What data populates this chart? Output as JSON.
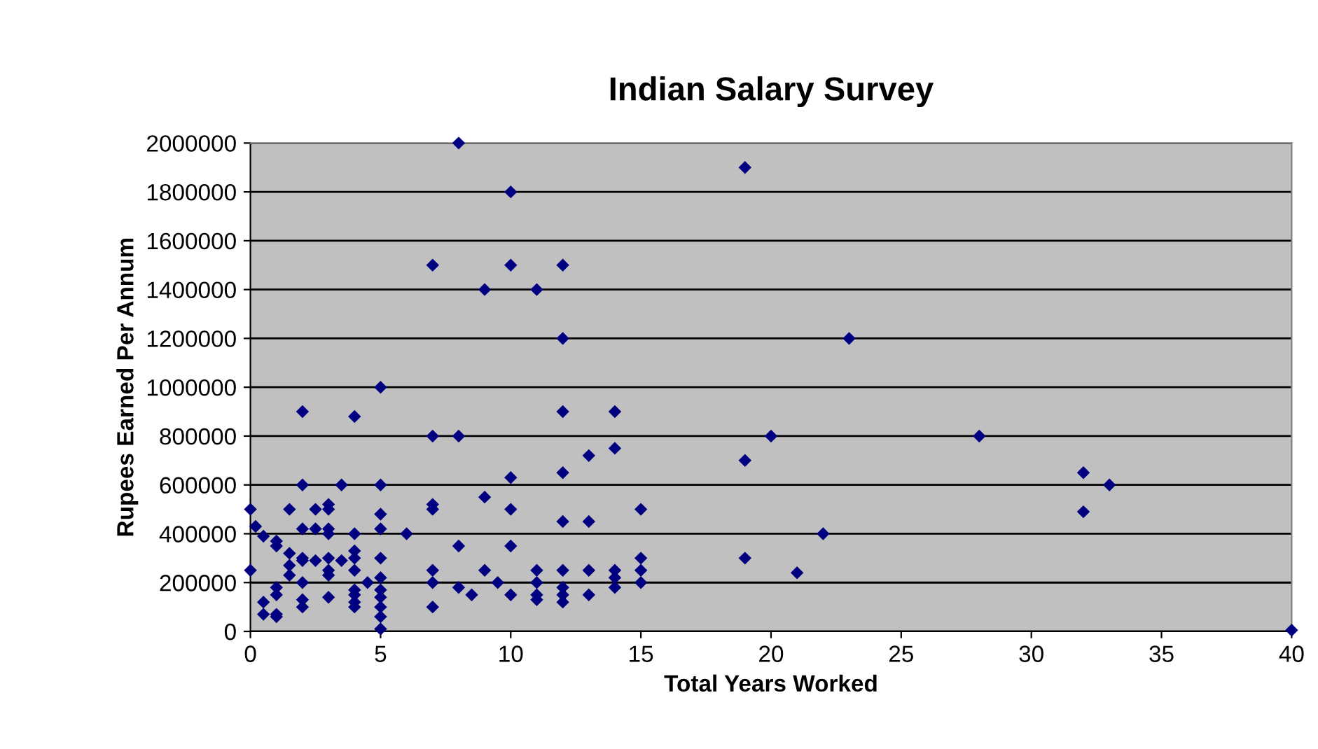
{
  "chart_data": {
    "type": "scatter",
    "title": "Indian Salary Survey",
    "xlabel": "Total Years Worked",
    "ylabel": "Rupees Earned Per Annum",
    "series": [
      {
        "color": "#000080",
        "x": [
          0,
          0.2,
          0,
          0.5,
          0.5,
          0.5,
          1,
          1,
          1,
          1,
          1,
          1,
          1.5,
          1.5,
          1.5,
          1.5,
          2,
          2,
          2,
          2,
          2,
          2,
          2,
          2,
          2.5,
          2.5,
          2.5,
          3,
          3,
          3,
          3,
          3,
          3,
          3,
          3,
          3.5,
          3.5,
          4,
          4,
          4,
          4,
          4,
          4,
          4,
          4,
          4,
          4.5,
          5,
          5,
          5,
          5,
          5,
          5,
          5,
          5,
          5,
          5,
          5,
          6,
          7,
          7,
          7,
          7,
          7,
          7,
          7,
          8,
          8,
          8,
          8,
          8.5,
          9,
          9,
          9,
          9.5,
          10,
          10,
          10,
          10,
          10,
          10,
          11,
          11,
          11,
          11,
          11,
          12,
          12,
          12,
          12,
          12,
          12,
          12,
          12,
          12,
          13,
          13,
          13,
          13,
          14,
          14,
          14,
          14,
          14,
          15,
          15,
          15,
          15,
          19,
          19,
          19,
          20,
          21,
          22,
          23,
          28,
          32,
          32,
          33,
          40
        ],
        "values": [
          500000,
          430000,
          250000,
          390000,
          120000,
          70000,
          370000,
          350000,
          180000,
          150000,
          70000,
          60000,
          500000,
          320000,
          270000,
          230000,
          900000,
          600000,
          420000,
          300000,
          290000,
          200000,
          130000,
          100000,
          500000,
          420000,
          290000,
          520000,
          500000,
          420000,
          400000,
          300000,
          250000,
          230000,
          140000,
          600000,
          290000,
          880000,
          400000,
          330000,
          300000,
          250000,
          170000,
          150000,
          120000,
          100000,
          200000,
          1000000,
          600000,
          480000,
          420000,
          300000,
          220000,
          170000,
          140000,
          100000,
          60000,
          10000,
          400000,
          1500000,
          800000,
          520000,
          500000,
          250000,
          200000,
          100000,
          2000000,
          800000,
          350000,
          180000,
          150000,
          1400000,
          550000,
          250000,
          200000,
          1800000,
          1500000,
          630000,
          500000,
          350000,
          150000,
          1400000,
          250000,
          200000,
          150000,
          130000,
          1500000,
          1200000,
          900000,
          650000,
          450000,
          250000,
          180000,
          150000,
          120000,
          720000,
          450000,
          250000,
          150000,
          900000,
          750000,
          250000,
          220000,
          180000,
          500000,
          300000,
          250000,
          200000,
          1900000,
          700000,
          300000,
          800000,
          240000,
          400000,
          1200000,
          800000,
          650000,
          490000,
          600000,
          5000
        ]
      }
    ],
    "marker": "diamond",
    "grid": "y",
    "legend": false,
    "xlim": [
      0,
      40
    ],
    "xticks": [
      0,
      5,
      10,
      15,
      20,
      25,
      30,
      35,
      40
    ],
    "ylim": [
      0,
      2000000
    ],
    "yticks": [
      0,
      200000,
      400000,
      600000,
      800000,
      1000000,
      1200000,
      1400000,
      1600000,
      1800000,
      2000000
    ]
  }
}
